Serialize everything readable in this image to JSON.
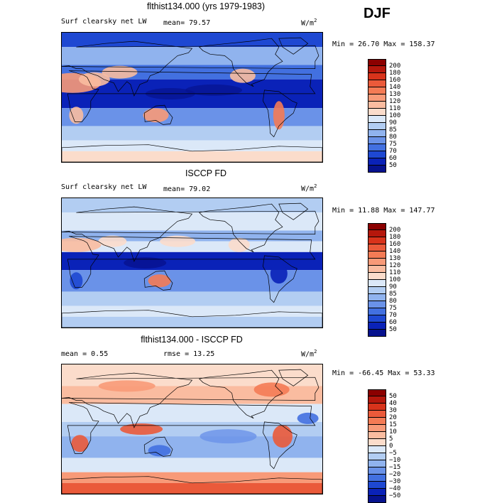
{
  "season": "DJF",
  "panels": [
    {
      "title": "flthist134.000 (yrs 1979-1983)",
      "left_label": "Surf clearsky net LW",
      "mid_label": "mean=  79.57",
      "units": "W/m",
      "units_sup": "2",
      "minmax": "Min =  26.70 Max = 158.37",
      "levels": [
        "200",
        "180",
        "160",
        "140",
        "130",
        "120",
        "110",
        "100",
        "90",
        "85",
        "80",
        "75",
        "70",
        "60",
        "50"
      ],
      "colors": [
        "#8b0000",
        "#b5170c",
        "#d8331b",
        "#ea5a3a",
        "#f47b55",
        "#f89a78",
        "#fabca0",
        "#fbdccb",
        "#dbe8f8",
        "#b2cdf2",
        "#90b3ee",
        "#6a92e8",
        "#4270e0",
        "#1e48d2",
        "#0a22b8",
        "#06128e"
      ],
      "kind": "field"
    },
    {
      "title": "ISCCP FD",
      "left_label": "Surf clearsky net LW",
      "mid_label": "mean=  79.02",
      "units": "W/m",
      "units_sup": "2",
      "minmax": "Min =  11.88 Max = 147.77",
      "levels": [
        "200",
        "180",
        "160",
        "140",
        "130",
        "120",
        "110",
        "100",
        "90",
        "85",
        "80",
        "75",
        "70",
        "60",
        "50"
      ],
      "colors": [
        "#8b0000",
        "#b5170c",
        "#d8331b",
        "#ea5a3a",
        "#f47b55",
        "#f89a78",
        "#fabca0",
        "#fbdccb",
        "#dbe8f8",
        "#b2cdf2",
        "#90b3ee",
        "#6a92e8",
        "#4270e0",
        "#1e48d2",
        "#0a22b8",
        "#06128e"
      ],
      "kind": "field2"
    },
    {
      "title": "flthist134.000 - ISCCP FD",
      "left_label": "mean =   0.55",
      "mid_label": "rmse =  13.25",
      "units": "W/m",
      "units_sup": "2",
      "minmax": "Min = -66.45 Max =  53.33",
      "levels": [
        "50",
        "40",
        "30",
        "20",
        "15",
        "10",
        "5",
        "0",
        "−5",
        "−10",
        "−15",
        "−20",
        "−30",
        "−40",
        "−50"
      ],
      "colors": [
        "#8b0000",
        "#b5170c",
        "#d8331b",
        "#ea5a3a",
        "#f47b55",
        "#f89a78",
        "#fabca0",
        "#fbdccb",
        "#dbe8f8",
        "#b2cdf2",
        "#90b3ee",
        "#6a92e8",
        "#4270e0",
        "#1e48d2",
        "#0a22b8",
        "#06128e"
      ],
      "kind": "diff"
    }
  ]
}
